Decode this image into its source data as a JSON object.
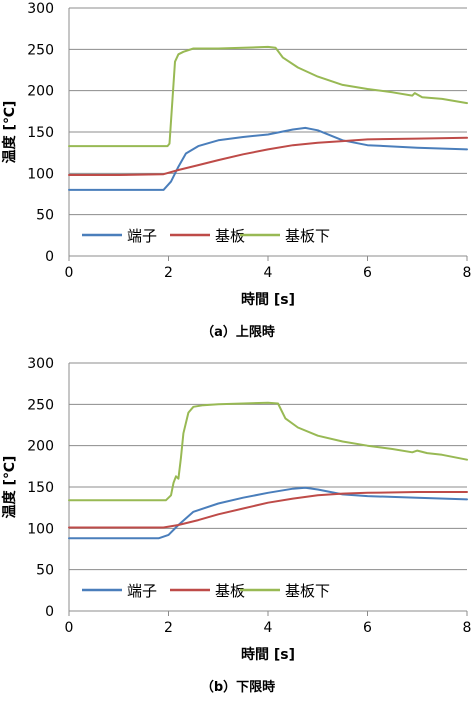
{
  "chart_data": [
    {
      "type": "line",
      "caption": "（a）上限時",
      "xlabel": "時間 [s]",
      "ylabel": "温度 [℃]",
      "xlim": [
        0,
        8
      ],
      "ylim": [
        0,
        300
      ],
      "xticks": [
        "0",
        "2",
        "4",
        "6",
        "8"
      ],
      "yticks": [
        "0",
        "50",
        "100",
        "150",
        "200",
        "250",
        "300"
      ],
      "grid": "horizontal",
      "legend": "bottom-left",
      "series": [
        {
          "name": "端子",
          "color": "#4a7ebb",
          "points": [
            [
              0,
              80
            ],
            [
              1.9,
              80
            ],
            [
              2.05,
              90
            ],
            [
              2.2,
              108
            ],
            [
              2.35,
              124
            ],
            [
              2.6,
              133
            ],
            [
              3.0,
              140
            ],
            [
              3.5,
              144
            ],
            [
              4.0,
              147
            ],
            [
              4.5,
              153
            ],
            [
              4.75,
              155
            ],
            [
              5.0,
              152
            ],
            [
              5.5,
              140
            ],
            [
              6.0,
              134
            ],
            [
              7.0,
              131
            ],
            [
              8.0,
              129
            ]
          ]
        },
        {
          "name": "基板",
          "color": "#be4b48",
          "points": [
            [
              0,
              98
            ],
            [
              1.0,
              98
            ],
            [
              1.9,
              99
            ],
            [
              2.2,
              104
            ],
            [
              2.6,
              110
            ],
            [
              3.0,
              116
            ],
            [
              3.5,
              123
            ],
            [
              4.0,
              129
            ],
            [
              4.5,
              134
            ],
            [
              5.0,
              137
            ],
            [
              5.5,
              139
            ],
            [
              6.0,
              141
            ],
            [
              7.0,
              142
            ],
            [
              8.0,
              143
            ]
          ]
        },
        {
          "name": "基板下",
          "color": "#98b954",
          "points": [
            [
              0,
              133
            ],
            [
              1.98,
              133
            ],
            [
              2.02,
              136
            ],
            [
              2.08,
              190
            ],
            [
              2.13,
              235
            ],
            [
              2.2,
              244
            ],
            [
              2.3,
              247
            ],
            [
              2.5,
              251
            ],
            [
              3.0,
              251
            ],
            [
              3.5,
              252
            ],
            [
              4.0,
              253
            ],
            [
              4.15,
              252
            ],
            [
              4.3,
              240
            ],
            [
              4.6,
              228
            ],
            [
              5.0,
              217
            ],
            [
              5.5,
              207
            ],
            [
              6.0,
              202
            ],
            [
              6.5,
              198
            ],
            [
              6.9,
              194
            ],
            [
              6.95,
              197
            ],
            [
              7.1,
              192
            ],
            [
              7.5,
              190
            ],
            [
              8.0,
              185
            ]
          ]
        }
      ]
    },
    {
      "type": "line",
      "caption": "（b）下限時",
      "xlabel": "時間 [s]",
      "ylabel": "温度 [℃]",
      "xlim": [
        0,
        8
      ],
      "ylim": [
        0,
        300
      ],
      "xticks": [
        "0",
        "2",
        "4",
        "6",
        "8"
      ],
      "yticks": [
        "0",
        "50",
        "100",
        "150",
        "200",
        "250",
        "300"
      ],
      "grid": "horizontal",
      "legend": "bottom-left",
      "series": [
        {
          "name": "端子",
          "color": "#4a7ebb",
          "points": [
            [
              0,
              88
            ],
            [
              1.8,
              88
            ],
            [
              2.0,
              92
            ],
            [
              2.2,
              104
            ],
            [
              2.5,
              120
            ],
            [
              3.0,
              130
            ],
            [
              3.5,
              137
            ],
            [
              4.0,
              143
            ],
            [
              4.5,
              148
            ],
            [
              4.75,
              149
            ],
            [
              5.0,
              147
            ],
            [
              5.5,
              141
            ],
            [
              6.0,
              139
            ],
            [
              7.0,
              137
            ],
            [
              8.0,
              135
            ]
          ]
        },
        {
          "name": "基板",
          "color": "#be4b48",
          "points": [
            [
              0,
              101
            ],
            [
              1.0,
              101
            ],
            [
              1.9,
              101
            ],
            [
              2.2,
              104
            ],
            [
              2.6,
              110
            ],
            [
              3.0,
              117
            ],
            [
              3.5,
              124
            ],
            [
              4.0,
              131
            ],
            [
              4.5,
              136
            ],
            [
              5.0,
              140
            ],
            [
              5.5,
              142
            ],
            [
              6.0,
              143
            ],
            [
              7.0,
              144
            ],
            [
              8.0,
              144
            ]
          ]
        },
        {
          "name": "基板下",
          "color": "#98b954",
          "points": [
            [
              0,
              134
            ],
            [
              1.95,
              134
            ],
            [
              2.05,
              140
            ],
            [
              2.1,
              155
            ],
            [
              2.15,
              163
            ],
            [
              2.2,
              160
            ],
            [
              2.25,
              185
            ],
            [
              2.3,
              215
            ],
            [
              2.4,
              240
            ],
            [
              2.5,
              247
            ],
            [
              2.7,
              249
            ],
            [
              3.0,
              250
            ],
            [
              3.5,
              251
            ],
            [
              4.0,
              252
            ],
            [
              4.2,
              251
            ],
            [
              4.35,
              233
            ],
            [
              4.6,
              222
            ],
            [
              5.0,
              212
            ],
            [
              5.5,
              205
            ],
            [
              6.0,
              200
            ],
            [
              6.5,
              196
            ],
            [
              6.9,
              192
            ],
            [
              7.0,
              194
            ],
            [
              7.2,
              191
            ],
            [
              7.5,
              189
            ],
            [
              8.0,
              183
            ]
          ]
        }
      ]
    }
  ]
}
